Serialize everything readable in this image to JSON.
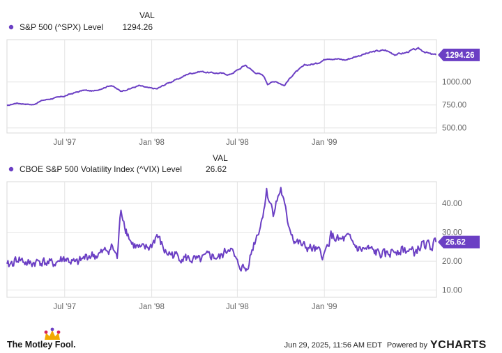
{
  "chart_data": [
    {
      "type": "line",
      "legend": {
        "header": "VAL",
        "name": "S&P 500 (^SPX) Level",
        "value": "1294.26"
      },
      "x_ticks": [
        "Jul '97",
        "Jan '98",
        "Jul '98",
        "Jan '99"
      ],
      "y_ticks": [
        "500.00",
        "750.00",
        "1000.00"
      ],
      "ylim": [
        445,
        1460
      ],
      "last_label": "1294.26",
      "color": "#6b3fc4",
      "grid": true,
      "legend_placement": "top-left",
      "series": [
        {
          "name": "S&P 500 (^SPX) Level",
          "points": [
            [
              "1997-03-01",
              740
            ],
            [
              "1997-03-20",
              770
            ],
            [
              "1997-04-10",
              760
            ],
            [
              "1997-04-25",
              752
            ],
            [
              "1997-05-15",
              800
            ],
            [
              "1997-06-05",
              820
            ],
            [
              "1997-06-30",
              845
            ],
            [
              "1997-07-20",
              880
            ],
            [
              "1997-08-10",
              910
            ],
            [
              "1997-09-01",
              900
            ],
            [
              "1997-09-20",
              935
            ],
            [
              "1997-10-07",
              965
            ],
            [
              "1997-10-27",
              900
            ],
            [
              "1997-11-15",
              925
            ],
            [
              "1997-12-05",
              960
            ],
            [
              "1997-12-25",
              935
            ],
            [
              "1998-01-12",
              925
            ],
            [
              "1998-02-05",
              990
            ],
            [
              "1998-02-25",
              1030
            ],
            [
              "1998-03-20",
              1090
            ],
            [
              "1998-04-15",
              1115
            ],
            [
              "1998-05-05",
              1100
            ],
            [
              "1998-05-25",
              1095
            ],
            [
              "1998-06-15",
              1080
            ],
            [
              "1998-07-05",
              1140
            ],
            [
              "1998-07-18",
              1185
            ],
            [
              "1998-08-05",
              1110
            ],
            [
              "1998-08-25",
              1070
            ],
            [
              "1998-09-03",
              980
            ],
            [
              "1998-09-20",
              1010
            ],
            [
              "1998-10-08",
              960
            ],
            [
              "1998-10-28",
              1090
            ],
            [
              "1998-11-20",
              1180
            ],
            [
              "1998-12-15",
              1200
            ],
            [
              "1999-01-08",
              1260
            ],
            [
              "1999-01-28",
              1250
            ],
            [
              "1999-02-15",
              1240
            ],
            [
              "1999-03-10",
              1280
            ],
            [
              "1999-04-01",
              1310
            ],
            [
              "1999-04-20",
              1335
            ],
            [
              "1999-05-10",
              1345
            ],
            [
              "1999-05-30",
              1300
            ],
            [
              "1999-06-20",
              1315
            ],
            [
              "1999-07-05",
              1345
            ],
            [
              "1999-07-20",
              1360
            ],
            [
              "1999-08-01",
              1330
            ],
            [
              "1999-08-15",
              1300
            ],
            [
              "1999-08-25",
              1294
            ]
          ]
        }
      ]
    },
    {
      "type": "line",
      "legend": {
        "header": "VAL",
        "name": "CBOE S&P 500 Volatility Index (^VIX) Level",
        "value": "26.62"
      },
      "x_ticks": [
        "Jul '97",
        "Jan '98",
        "Jul '98",
        "Jan '99"
      ],
      "y_ticks": [
        "10.00",
        "20.00",
        "30.00",
        "40.00"
      ],
      "ylim": [
        7.5,
        47.5
      ],
      "last_label": "26.62",
      "color": "#6b3fc4",
      "grid": true,
      "legend_placement": "top-left",
      "series": [
        {
          "name": "CBOE S&P 500 Volatility Index (^VIX) Level",
          "points": [
            [
              "1997-03-01",
              18
            ],
            [
              "1997-03-25",
              21
            ],
            [
              "1997-04-15",
              19
            ],
            [
              "1997-05-10",
              20
            ],
            [
              "1997-06-05",
              19
            ],
            [
              "1997-06-30",
              21
            ],
            [
              "1997-07-25",
              19
            ],
            [
              "1997-08-20",
              22
            ],
            [
              "1997-09-10",
              22
            ],
            [
              "1997-09-30",
              24
            ],
            [
              "1997-10-10",
              25
            ],
            [
              "1997-10-20",
              21
            ],
            [
              "1997-10-28",
              38
            ],
            [
              "1997-11-08",
              31
            ],
            [
              "1997-11-20",
              26
            ],
            [
              "1997-12-10",
              24
            ],
            [
              "1997-12-30",
              25
            ],
            [
              "1998-01-12",
              29
            ],
            [
              "1998-01-30",
              23
            ],
            [
              "1998-02-20",
              22
            ],
            [
              "1998-03-15",
              21
            ],
            [
              "1998-04-10",
              20
            ],
            [
              "1998-05-05",
              22
            ],
            [
              "1998-05-25",
              21
            ],
            [
              "1998-06-15",
              25
            ],
            [
              "1998-07-01",
              19
            ],
            [
              "1998-07-20",
              17
            ],
            [
              "1998-08-05",
              26
            ],
            [
              "1998-08-20",
              33
            ],
            [
              "1998-09-01",
              44
            ],
            [
              "1998-09-15",
              37
            ],
            [
              "1998-10-01",
              45
            ],
            [
              "1998-10-15",
              34
            ],
            [
              "1998-10-30",
              27
            ],
            [
              "1998-11-20",
              25
            ],
            [
              "1998-12-10",
              24
            ],
            [
              "1999-01-01",
              22
            ],
            [
              "1999-01-15",
              29
            ],
            [
              "1999-02-01",
              27
            ],
            [
              "1999-02-20",
              28
            ],
            [
              "1999-03-15",
              24
            ],
            [
              "1999-04-05",
              24
            ],
            [
              "1999-04-20",
              23
            ],
            [
              "1999-05-10",
              22
            ],
            [
              "1999-06-01",
              24
            ],
            [
              "1999-06-20",
              24
            ],
            [
              "1999-07-10",
              23
            ],
            [
              "1999-07-30",
              26
            ],
            [
              "1999-08-15",
              25
            ],
            [
              "1999-08-25",
              26.62
            ]
          ]
        }
      ]
    }
  ],
  "footer": {
    "brand": "The Motley Fool.",
    "timestamp": "Jun 29, 2025, 11:56 AM EDT",
    "powered_by": "Powered by",
    "provider": "YCHARTS"
  }
}
